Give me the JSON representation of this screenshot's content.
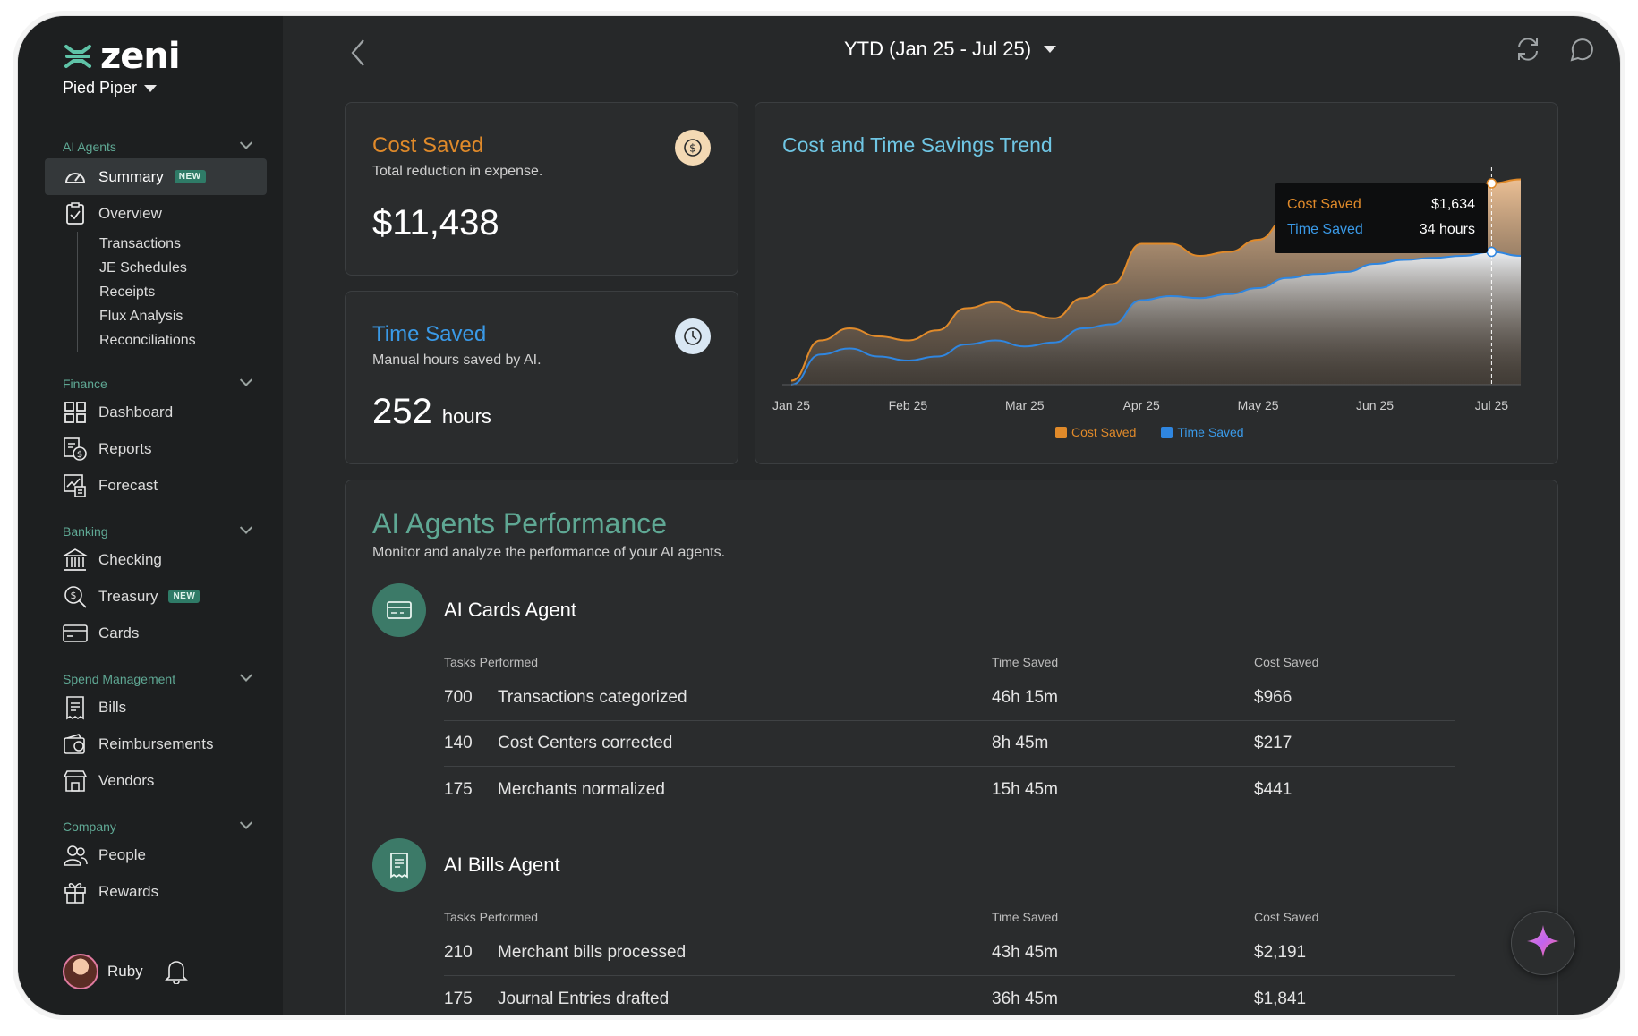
{
  "app": {
    "brand": "zeni",
    "org": "Pied Piper",
    "period": "YTD (Jan 25 - Jul 25)"
  },
  "sidebar": {
    "sections": [
      {
        "title": "AI Agents",
        "items": [
          {
            "label": "Summary",
            "icon": "speedometer-icon",
            "badge": "NEW",
            "active": true
          },
          {
            "label": "Overview",
            "icon": "clipboard-check-icon"
          }
        ],
        "subitems": [
          "Transactions",
          "JE Schedules",
          "Receipts",
          "Flux Analysis",
          "Reconciliations"
        ]
      },
      {
        "title": "Finance",
        "items": [
          {
            "label": "Dashboard",
            "icon": "grid-icon"
          },
          {
            "label": "Reports",
            "icon": "report-dollar-icon"
          },
          {
            "label": "Forecast",
            "icon": "forecast-icon"
          }
        ]
      },
      {
        "title": "Banking",
        "items": [
          {
            "label": "Checking",
            "icon": "bank-icon"
          },
          {
            "label": "Treasury",
            "icon": "treasury-icon",
            "badge": "NEW"
          },
          {
            "label": "Cards",
            "icon": "card-icon"
          }
        ]
      },
      {
        "title": "Spend Management",
        "items": [
          {
            "label": "Bills",
            "icon": "bill-icon"
          },
          {
            "label": "Reimbursements",
            "icon": "wallet-icon"
          },
          {
            "label": "Vendors",
            "icon": "store-icon"
          }
        ]
      },
      {
        "title": "Company",
        "items": [
          {
            "label": "People",
            "icon": "people-icon"
          },
          {
            "label": "Rewards",
            "icon": "gift-icon"
          }
        ]
      }
    ],
    "user": {
      "name": "Ruby"
    }
  },
  "stats": {
    "cost": {
      "title": "Cost Saved",
      "subtitle": "Total reduction in expense.",
      "value": "$11,438",
      "icon": "dollar-coin-icon"
    },
    "time": {
      "title": "Time Saved",
      "subtitle": "Manual hours saved by AI.",
      "value": "252",
      "unit": "hours",
      "icon": "clock-icon"
    }
  },
  "chart": {
    "title": "Cost and Time Savings Trend",
    "tooltip": {
      "cost_label": "Cost Saved",
      "cost_value": "$1,634",
      "time_label": "Time Saved",
      "time_value": "34 hours"
    },
    "legend": {
      "cost": "Cost Saved",
      "time": "Time Saved"
    }
  },
  "chart_data": {
    "type": "area",
    "title": "Cost and Time Savings Trend",
    "x_tick_labels": [
      "Jan 25",
      "Feb 25",
      "Mar 25",
      "Apr 25",
      "May 25",
      "Jun 25",
      "Jul 25"
    ],
    "x": [
      0,
      0.25,
      0.5,
      0.75,
      1,
      1.25,
      1.5,
      1.75,
      2,
      2.25,
      2.5,
      2.75,
      3,
      3.25,
      3.5,
      3.75,
      4,
      4.25,
      4.5,
      4.75,
      5,
      5.25,
      5.5,
      5.75,
      6,
      6.25
    ],
    "series": [
      {
        "name": "Cost Saved",
        "color": "#e08a2a",
        "values": [
          0.02,
          0.22,
          0.28,
          0.24,
          0.22,
          0.27,
          0.38,
          0.41,
          0.36,
          0.33,
          0.43,
          0.5,
          0.7,
          0.7,
          0.64,
          0.66,
          0.72,
          0.83,
          0.88,
          0.83,
          0.86,
          0.92,
          0.92,
          1.0,
          1.0,
          1.02
        ]
      },
      {
        "name": "Time Saved",
        "color": "#2f86e0",
        "values": [
          0.0,
          0.15,
          0.18,
          0.14,
          0.12,
          0.14,
          0.2,
          0.22,
          0.19,
          0.21,
          0.28,
          0.3,
          0.42,
          0.44,
          0.43,
          0.45,
          0.48,
          0.53,
          0.55,
          0.56,
          0.6,
          0.62,
          0.63,
          0.64,
          0.66,
          0.64
        ]
      }
    ],
    "highlight": {
      "x_label": "Jul 25",
      "Cost Saved": "$1,634",
      "Time Saved": "34 hours"
    },
    "legend_position": "bottom",
    "grid": false
  },
  "performance": {
    "title": "AI Agents Performance",
    "subtitle": "Monitor and analyze the performance of your AI agents.",
    "headers": {
      "tasks": "Tasks Performed",
      "time": "Time Saved",
      "cost": "Cost Saved"
    },
    "agents": [
      {
        "name": "AI Cards Agent",
        "icon": "card-icon",
        "rows": [
          {
            "count": "700",
            "task": "Transactions categorized",
            "time": "46h 15m",
            "cost": "$966"
          },
          {
            "count": "140",
            "task": "Cost Centers corrected",
            "time": "8h 45m",
            "cost": "$217"
          },
          {
            "count": "175",
            "task": "Merchants normalized",
            "time": "15h 45m",
            "cost": "$441"
          }
        ]
      },
      {
        "name": "AI Bills Agent",
        "icon": "bill-icon",
        "rows": [
          {
            "count": "210",
            "task": "Merchant bills processed",
            "time": "43h 45m",
            "cost": "$2,191"
          },
          {
            "count": "175",
            "task": "Journal Entries drafted",
            "time": "36h 45m",
            "cost": "$1,841"
          }
        ]
      }
    ]
  },
  "colors": {
    "accent_green": "#5fa894",
    "cost_orange": "#e08a2a",
    "time_blue": "#2f86e0",
    "chart_title": "#6fc6e4"
  }
}
